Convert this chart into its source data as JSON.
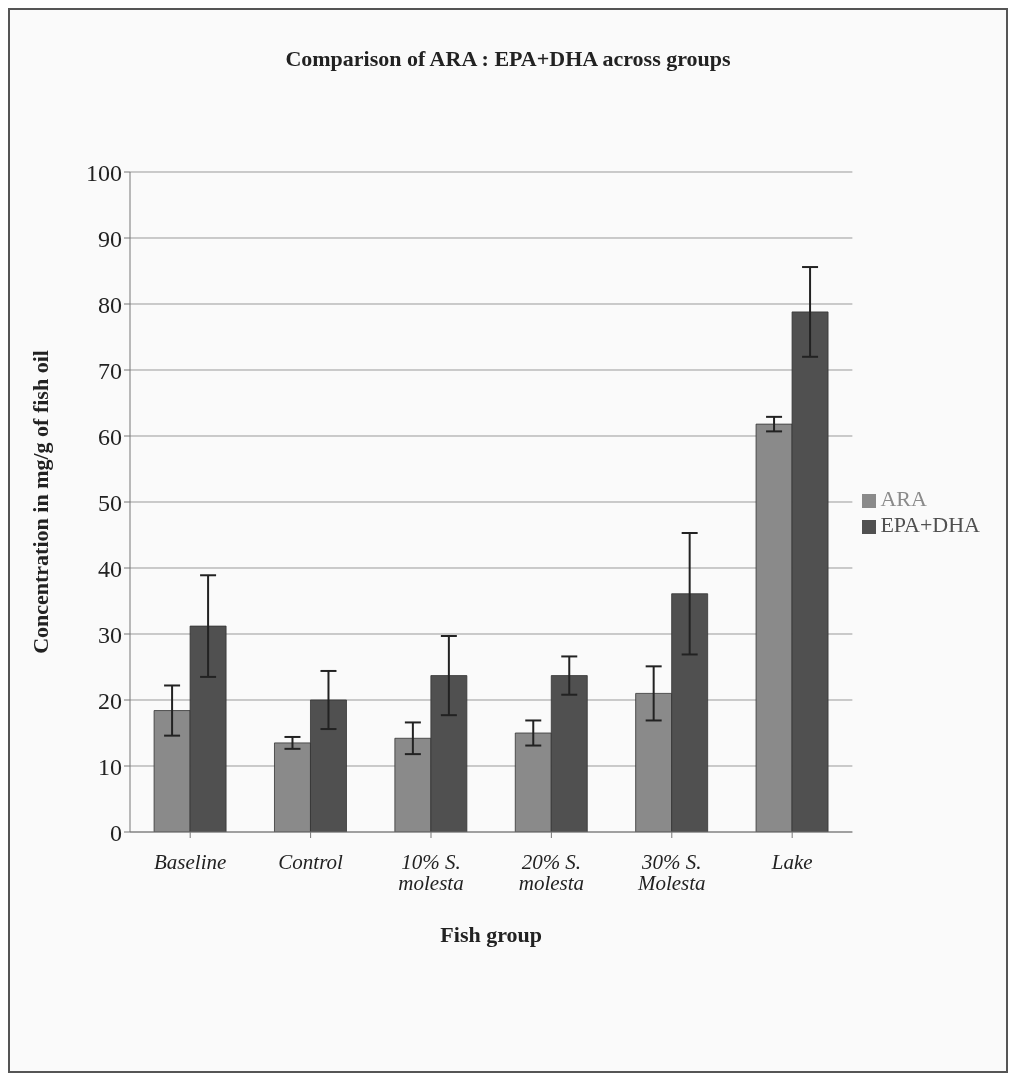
{
  "chart_data": {
    "type": "bar",
    "title": "Comparison of ARA : EPA+DHA across groups",
    "xlabel": "Fish group",
    "ylabel": "Concentration in mg/g of fish oil",
    "categories": [
      "Baseline",
      "Control",
      "10% S. molesta",
      "20% S. molesta",
      "30% S. Molesta",
      "Lake"
    ],
    "series": [
      {
        "name": "ARA",
        "color": "#8a8a8a",
        "values": [
          18.4,
          13.5,
          14.2,
          15.0,
          21.0,
          61.8
        ],
        "errors": [
          3.8,
          0.9,
          2.4,
          1.9,
          4.1,
          1.1
        ]
      },
      {
        "name": "EPA+DHA",
        "color": "#505050",
        "values": [
          31.2,
          20.0,
          23.7,
          23.7,
          36.1,
          78.8
        ],
        "errors": [
          7.7,
          4.4,
          6.0,
          2.9,
          9.2,
          6.8
        ]
      }
    ],
    "ylim": [
      0,
      100
    ],
    "yticks": [
      0,
      10,
      20,
      30,
      40,
      50,
      60,
      70,
      80,
      90,
      100
    ],
    "grid": "y",
    "legend": "right"
  }
}
